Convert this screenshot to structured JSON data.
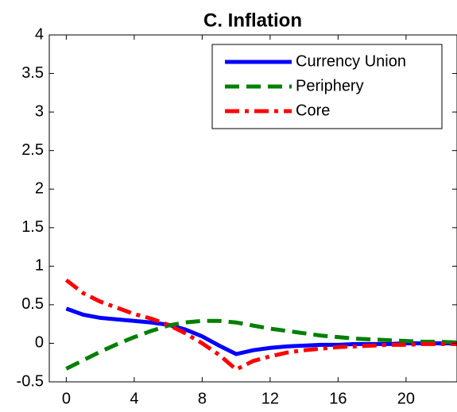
{
  "chart_data": {
    "type": "line",
    "title": "C. Inflation",
    "x": [
      0,
      1,
      2,
      3,
      4,
      5,
      6,
      7,
      8,
      9,
      10,
      11,
      12,
      13,
      14,
      15,
      16,
      17,
      18,
      19,
      20,
      21,
      22,
      23
    ],
    "series": [
      {
        "name": "Currency Union",
        "color": "#0000ff",
        "dash": "solid",
        "values": [
          0.45,
          0.37,
          0.33,
          0.31,
          0.29,
          0.27,
          0.24,
          0.18,
          0.09,
          -0.03,
          -0.14,
          -0.09,
          -0.06,
          -0.04,
          -0.03,
          -0.02,
          -0.02,
          -0.01,
          -0.01,
          -0.01,
          0,
          0,
          0,
          0
        ]
      },
      {
        "name": "Periphery",
        "color": "#008000",
        "dash": "dashed",
        "values": [
          -0.33,
          -0.22,
          -0.11,
          -0.01,
          0.08,
          0.16,
          0.23,
          0.27,
          0.29,
          0.29,
          0.27,
          0.23,
          0.19,
          0.16,
          0.13,
          0.1,
          0.08,
          0.06,
          0.05,
          0.04,
          0.03,
          0.02,
          0.02,
          0.01
        ]
      },
      {
        "name": "Core",
        "color": "#ff0000",
        "dash": "dashdot",
        "values": [
          0.82,
          0.65,
          0.54,
          0.46,
          0.38,
          0.32,
          0.24,
          0.13,
          0.0,
          -0.15,
          -0.34,
          -0.23,
          -0.17,
          -0.12,
          -0.09,
          -0.07,
          -0.05,
          -0.04,
          -0.03,
          -0.02,
          -0.02,
          -0.01,
          -0.01,
          -0.01
        ]
      }
    ],
    "xlim": [
      -1,
      23
    ],
    "xticks": [
      0,
      4,
      8,
      12,
      16,
      20
    ],
    "ylim": [
      -0.5,
      4
    ],
    "yticks": [
      -0.5,
      0,
      0.5,
      1,
      1.5,
      2,
      2.5,
      3,
      3.5,
      4
    ],
    "legend": "upper right",
    "grid": false
  }
}
